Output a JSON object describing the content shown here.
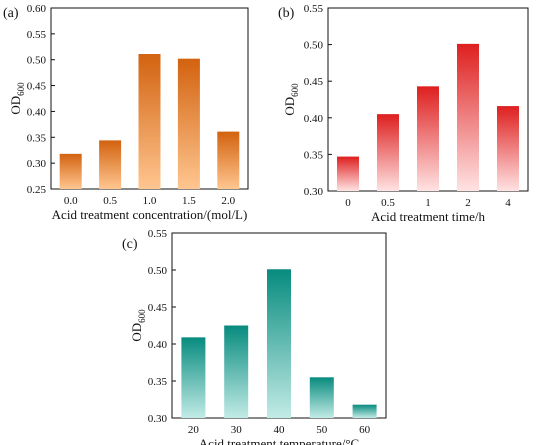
{
  "chart_data": [
    {
      "panel_label": "(a)",
      "type": "bar",
      "categories": [
        "0.0",
        "0.5",
        "1.0",
        "1.5",
        "2.0"
      ],
      "values": [
        0.318,
        0.344,
        0.511,
        0.502,
        0.361
      ],
      "xlabel": "Acid treatment concentration/(mol/L)",
      "ylabel_main": "OD",
      "ylabel_sub": "600",
      "ylim": [
        0.25,
        0.6
      ],
      "yticks": [
        "0.25",
        "0.30",
        "0.35",
        "0.40",
        "0.45",
        "0.50",
        "0.55",
        "0.60"
      ],
      "color_top": "#d2620f",
      "color_bottom": "#ffc690"
    },
    {
      "panel_label": "(b)",
      "type": "bar",
      "categories": [
        "0",
        "0.5",
        "1",
        "2",
        "4"
      ],
      "values": [
        0.347,
        0.405,
        0.443,
        0.501,
        0.416
      ],
      "xlabel": "Acid treatment time/h",
      "ylabel_main": "OD",
      "ylabel_sub": "600",
      "ylim": [
        0.3,
        0.55
      ],
      "yticks": [
        "0.30",
        "0.35",
        "0.40",
        "0.45",
        "0.50",
        "0.55"
      ],
      "color_top": "#de1f1f",
      "color_bottom": "#ffe3e3"
    },
    {
      "panel_label": "(c)",
      "type": "bar",
      "categories": [
        "20",
        "30",
        "40",
        "50",
        "60"
      ],
      "values": [
        0.409,
        0.425,
        0.501,
        0.355,
        0.318
      ],
      "xlabel": "Acid treatment temperature/°C",
      "ylabel_main": "OD",
      "ylabel_sub": "600",
      "ylim": [
        0.3,
        0.55
      ],
      "yticks": [
        "0.30",
        "0.35",
        "0.40",
        "0.45",
        "0.50",
        "0.55"
      ],
      "color_top": "#078b7e",
      "color_bottom": "#c2ebe6"
    }
  ]
}
